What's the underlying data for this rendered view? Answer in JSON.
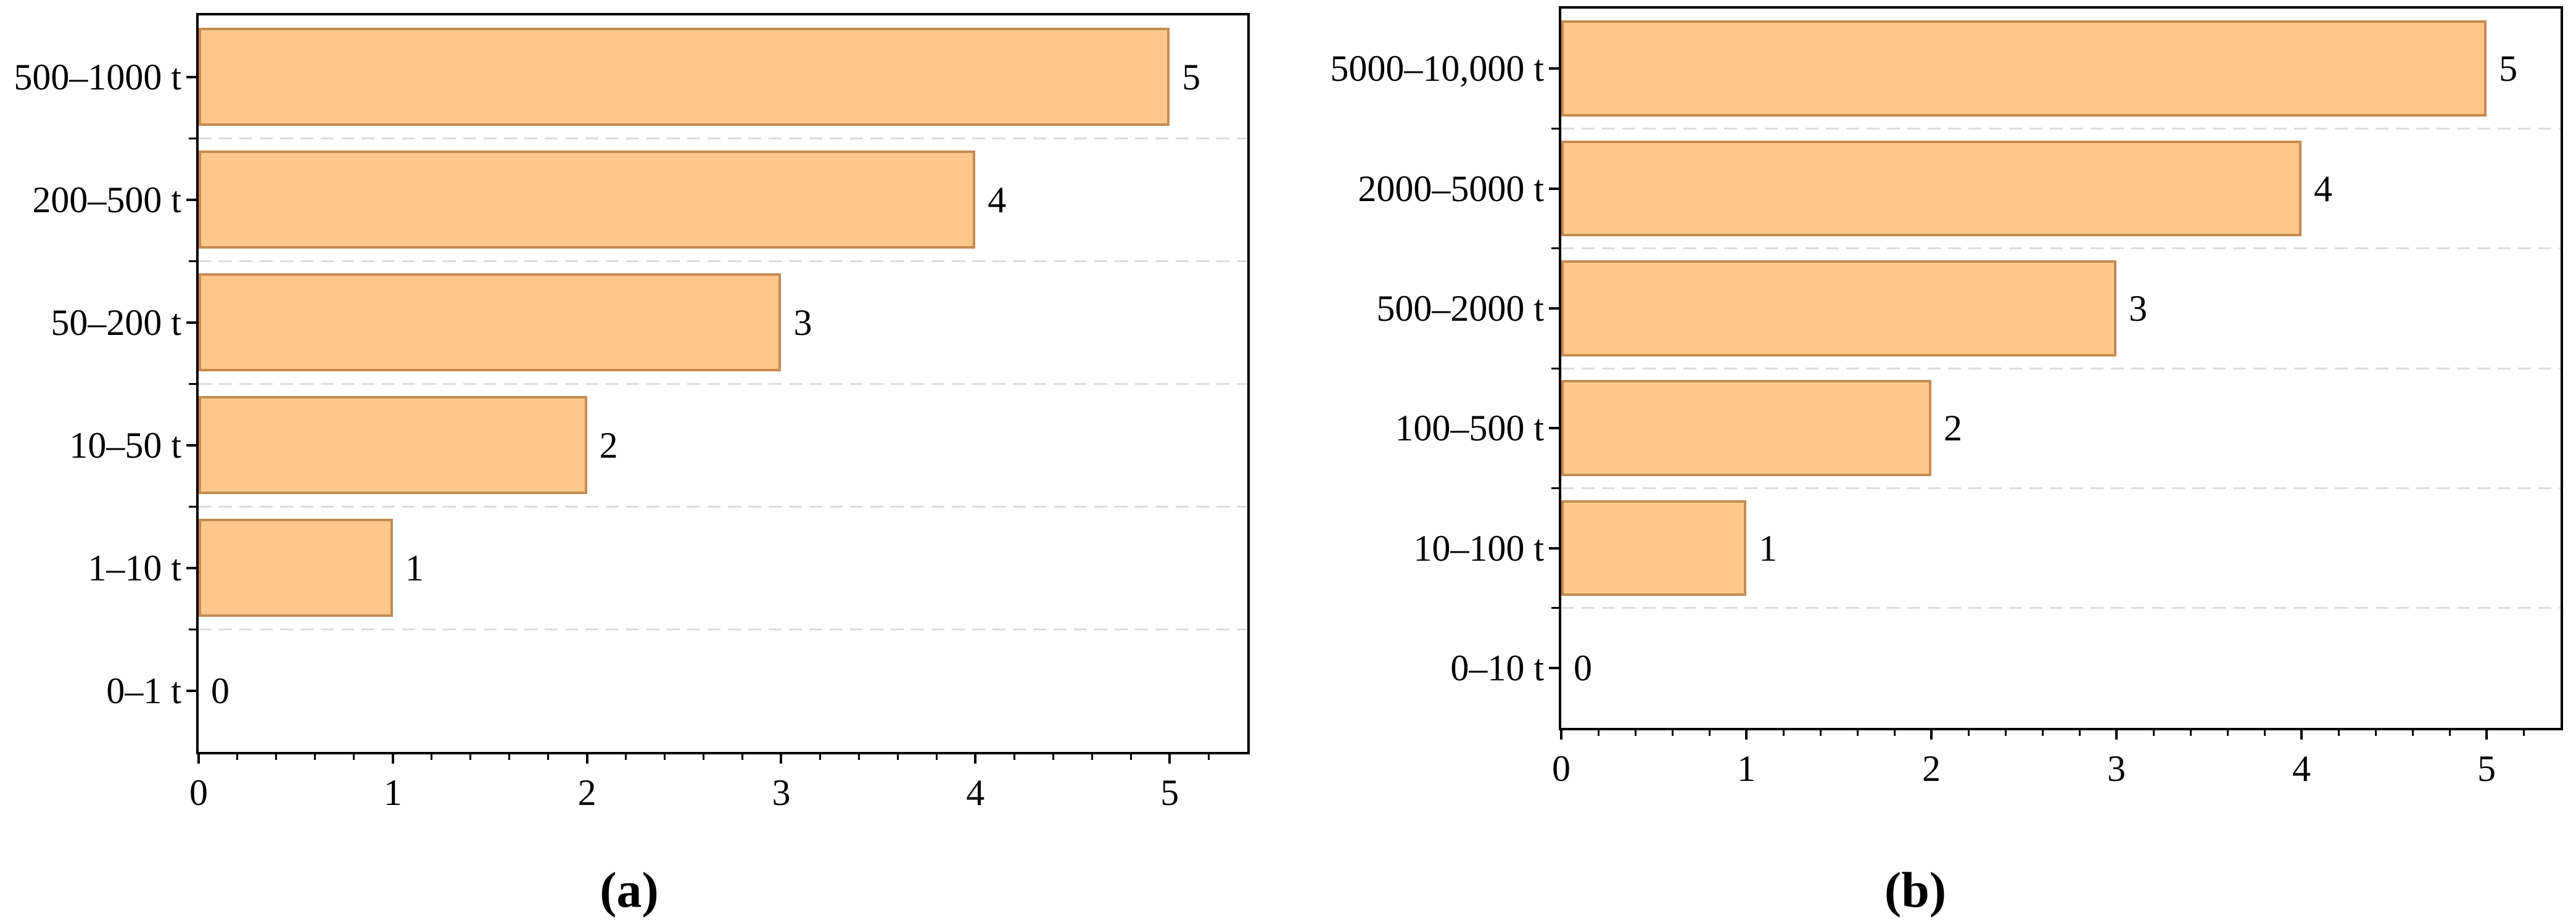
{
  "figure": {
    "background": "#FFFFFF",
    "axis_color": "#000000",
    "text_color": "#000000"
  },
  "chart_data": [
    {
      "id": "a",
      "type": "bar",
      "orientation": "horizontal",
      "caption": "(a)",
      "categories": [
        "500–1000 t",
        "200–500 t",
        "50–200 t",
        "10–50 t",
        "1–10 t",
        "0–1 t"
      ],
      "values": [
        5,
        4,
        3,
        2,
        1,
        0
      ],
      "bar_labels": [
        "5",
        "4",
        "3",
        "2",
        "1",
        "0"
      ],
      "x_ticks": [
        0,
        1,
        2,
        3,
        4,
        5
      ],
      "x_tick_labels": [
        "0",
        "1",
        "2",
        "3",
        "4",
        "5"
      ],
      "xlim": [
        0,
        5.4
      ],
      "x_minor_tick_step": 0.2,
      "grid": "dashed horizontal lines at category boundaries",
      "bar_fill": "#FDC88A",
      "bar_border": "#C68A53",
      "grid_color": "#DCDCDC",
      "axis_color": "#000000"
    },
    {
      "id": "b",
      "type": "bar",
      "orientation": "horizontal",
      "caption": "(b)",
      "categories": [
        "5000–10,000 t",
        "2000–5000 t",
        "500–2000 t",
        "100–500 t",
        "10–100 t",
        "0–10 t"
      ],
      "values": [
        5,
        4,
        3,
        2,
        1,
        0
      ],
      "bar_labels": [
        "5",
        "4",
        "3",
        "2",
        "1",
        "0"
      ],
      "x_ticks": [
        0,
        1,
        2,
        3,
        4,
        5
      ],
      "x_tick_labels": [
        "0",
        "1",
        "2",
        "3",
        "4",
        "5"
      ],
      "xlim": [
        0,
        5.4
      ],
      "x_minor_tick_step": 0.2,
      "grid": "dashed horizontal lines at category boundaries",
      "bar_fill": "#FDC88A",
      "bar_border": "#C68A53",
      "grid_color": "#DCDCDC",
      "axis_color": "#000000"
    }
  ]
}
